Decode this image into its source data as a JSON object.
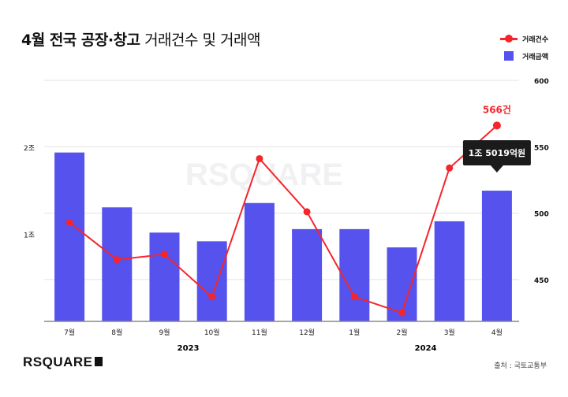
{
  "chart_data": {
    "type": "bar+line",
    "title_bold": "4월 전국 공장·창고",
    "title_rest": "거래건수 및 거래액",
    "categories": [
      "7월",
      "8월",
      "9월",
      "10월",
      "11월",
      "12월",
      "1월",
      "2월",
      "3월",
      "4월"
    ],
    "year_labels": [
      {
        "label": "2023",
        "from": 0,
        "to": 5
      },
      {
        "label": "2024",
        "from": 6,
        "to": 9
      }
    ],
    "series": [
      {
        "name": "거래건수",
        "type": "line",
        "axis": "right",
        "color": "#f5252b",
        "values": [
          493,
          465,
          469,
          437,
          541,
          501,
          437,
          425,
          534,
          566
        ]
      },
      {
        "name": "거래금액",
        "type": "bar",
        "axis": "left",
        "unit": "조",
        "color": "#5552ee",
        "values": [
          1.94,
          1.31,
          1.02,
          0.92,
          1.36,
          1.06,
          1.06,
          0.85,
          1.15,
          1.5019
        ]
      }
    ],
    "left_axis": {
      "ticks": [
        {
          "value": 1,
          "label": "1조"
        },
        {
          "value": 2,
          "label": "2조"
        }
      ],
      "range": [
        0,
        2
      ]
    },
    "right_axis": {
      "ticks": [
        450,
        500,
        550,
        600
      ],
      "range": [
        418.5,
        600
      ]
    },
    "annotations": {
      "last_line_label": "566건",
      "last_bar_label": "1조 5019억원"
    },
    "grid": true,
    "legend": "top-right",
    "source": "출처 : 국토교통부",
    "watermark": "RSQUARE",
    "logo": "RSQUARE"
  }
}
